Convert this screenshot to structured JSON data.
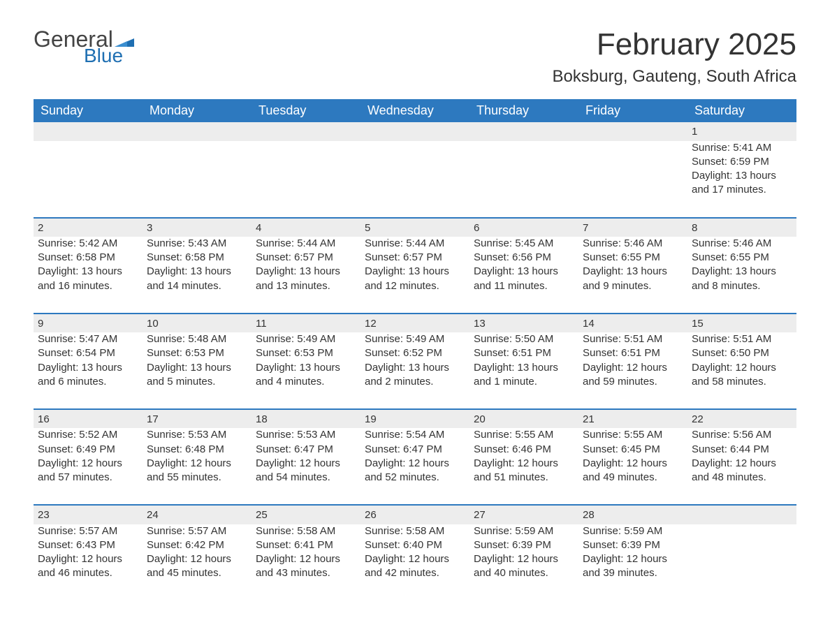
{
  "logo": {
    "text1": "General",
    "text2": "Blue",
    "flag_color": "#1f6fb2"
  },
  "title": "February 2025",
  "location": "Boksburg, Gauteng, South Africa",
  "colors": {
    "header_bg": "#2d79bf",
    "header_text": "#ffffff",
    "daynum_bg": "#ededed",
    "rule": "#2d79bf",
    "body_text": "#333333",
    "logo_blue": "#1f6fb2"
  },
  "day_headers": [
    "Sunday",
    "Monday",
    "Tuesday",
    "Wednesday",
    "Thursday",
    "Friday",
    "Saturday"
  ],
  "weeks": [
    [
      null,
      null,
      null,
      null,
      null,
      null,
      {
        "n": "1",
        "sr": "Sunrise: 5:41 AM",
        "ss": "Sunset: 6:59 PM",
        "dl": "Daylight: 13 hours and 17 minutes."
      }
    ],
    [
      {
        "n": "2",
        "sr": "Sunrise: 5:42 AM",
        "ss": "Sunset: 6:58 PM",
        "dl": "Daylight: 13 hours and 16 minutes."
      },
      {
        "n": "3",
        "sr": "Sunrise: 5:43 AM",
        "ss": "Sunset: 6:58 PM",
        "dl": "Daylight: 13 hours and 14 minutes."
      },
      {
        "n": "4",
        "sr": "Sunrise: 5:44 AM",
        "ss": "Sunset: 6:57 PM",
        "dl": "Daylight: 13 hours and 13 minutes."
      },
      {
        "n": "5",
        "sr": "Sunrise: 5:44 AM",
        "ss": "Sunset: 6:57 PM",
        "dl": "Daylight: 13 hours and 12 minutes."
      },
      {
        "n": "6",
        "sr": "Sunrise: 5:45 AM",
        "ss": "Sunset: 6:56 PM",
        "dl": "Daylight: 13 hours and 11 minutes."
      },
      {
        "n": "7",
        "sr": "Sunrise: 5:46 AM",
        "ss": "Sunset: 6:55 PM",
        "dl": "Daylight: 13 hours and 9 minutes."
      },
      {
        "n": "8",
        "sr": "Sunrise: 5:46 AM",
        "ss": "Sunset: 6:55 PM",
        "dl": "Daylight: 13 hours and 8 minutes."
      }
    ],
    [
      {
        "n": "9",
        "sr": "Sunrise: 5:47 AM",
        "ss": "Sunset: 6:54 PM",
        "dl": "Daylight: 13 hours and 6 minutes."
      },
      {
        "n": "10",
        "sr": "Sunrise: 5:48 AM",
        "ss": "Sunset: 6:53 PM",
        "dl": "Daylight: 13 hours and 5 minutes."
      },
      {
        "n": "11",
        "sr": "Sunrise: 5:49 AM",
        "ss": "Sunset: 6:53 PM",
        "dl": "Daylight: 13 hours and 4 minutes."
      },
      {
        "n": "12",
        "sr": "Sunrise: 5:49 AM",
        "ss": "Sunset: 6:52 PM",
        "dl": "Daylight: 13 hours and 2 minutes."
      },
      {
        "n": "13",
        "sr": "Sunrise: 5:50 AM",
        "ss": "Sunset: 6:51 PM",
        "dl": "Daylight: 13 hours and 1 minute."
      },
      {
        "n": "14",
        "sr": "Sunrise: 5:51 AM",
        "ss": "Sunset: 6:51 PM",
        "dl": "Daylight: 12 hours and 59 minutes."
      },
      {
        "n": "15",
        "sr": "Sunrise: 5:51 AM",
        "ss": "Sunset: 6:50 PM",
        "dl": "Daylight: 12 hours and 58 minutes."
      }
    ],
    [
      {
        "n": "16",
        "sr": "Sunrise: 5:52 AM",
        "ss": "Sunset: 6:49 PM",
        "dl": "Daylight: 12 hours and 57 minutes."
      },
      {
        "n": "17",
        "sr": "Sunrise: 5:53 AM",
        "ss": "Sunset: 6:48 PM",
        "dl": "Daylight: 12 hours and 55 minutes."
      },
      {
        "n": "18",
        "sr": "Sunrise: 5:53 AM",
        "ss": "Sunset: 6:47 PM",
        "dl": "Daylight: 12 hours and 54 minutes."
      },
      {
        "n": "19",
        "sr": "Sunrise: 5:54 AM",
        "ss": "Sunset: 6:47 PM",
        "dl": "Daylight: 12 hours and 52 minutes."
      },
      {
        "n": "20",
        "sr": "Sunrise: 5:55 AM",
        "ss": "Sunset: 6:46 PM",
        "dl": "Daylight: 12 hours and 51 minutes."
      },
      {
        "n": "21",
        "sr": "Sunrise: 5:55 AM",
        "ss": "Sunset: 6:45 PM",
        "dl": "Daylight: 12 hours and 49 minutes."
      },
      {
        "n": "22",
        "sr": "Sunrise: 5:56 AM",
        "ss": "Sunset: 6:44 PM",
        "dl": "Daylight: 12 hours and 48 minutes."
      }
    ],
    [
      {
        "n": "23",
        "sr": "Sunrise: 5:57 AM",
        "ss": "Sunset: 6:43 PM",
        "dl": "Daylight: 12 hours and 46 minutes."
      },
      {
        "n": "24",
        "sr": "Sunrise: 5:57 AM",
        "ss": "Sunset: 6:42 PM",
        "dl": "Daylight: 12 hours and 45 minutes."
      },
      {
        "n": "25",
        "sr": "Sunrise: 5:58 AM",
        "ss": "Sunset: 6:41 PM",
        "dl": "Daylight: 12 hours and 43 minutes."
      },
      {
        "n": "26",
        "sr": "Sunrise: 5:58 AM",
        "ss": "Sunset: 6:40 PM",
        "dl": "Daylight: 12 hours and 42 minutes."
      },
      {
        "n": "27",
        "sr": "Sunrise: 5:59 AM",
        "ss": "Sunset: 6:39 PM",
        "dl": "Daylight: 12 hours and 40 minutes."
      },
      {
        "n": "28",
        "sr": "Sunrise: 5:59 AM",
        "ss": "Sunset: 6:39 PM",
        "dl": "Daylight: 12 hours and 39 minutes."
      },
      null
    ]
  ]
}
